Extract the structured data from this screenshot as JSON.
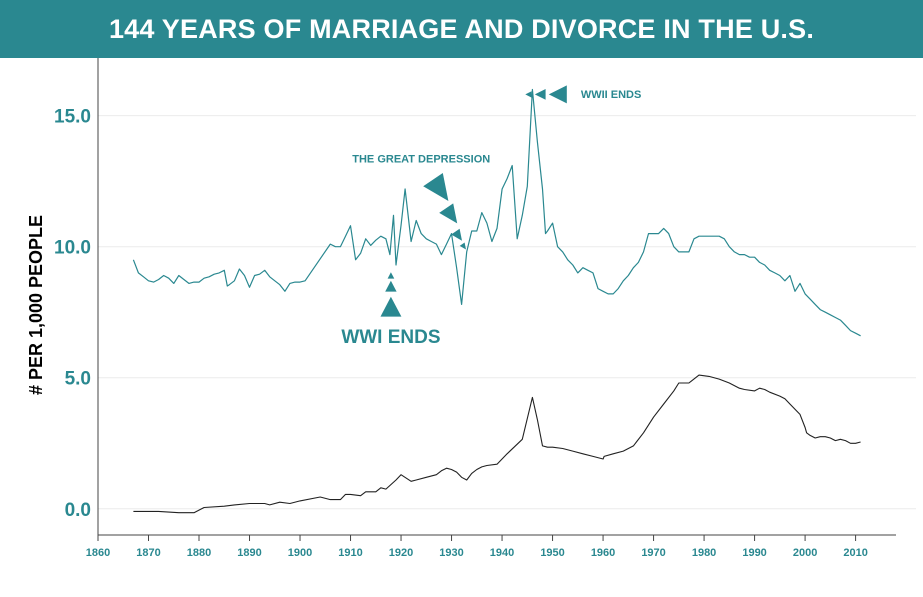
{
  "chart_data": {
    "type": "line",
    "title": "144 YEARS OF MARRIAGE AND DIVORCE IN THE U.S.",
    "ylabel": "# PER 1,000 PEOPLE",
    "xlabel": "",
    "xlim": [
      1860,
      2018
    ],
    "ylim": [
      -1.0,
      17.2
    ],
    "grid": "horizontal",
    "colors": {
      "marriage": "#2a8890",
      "divorce": "#222222",
      "text": "#2a8890",
      "axis": "#444444",
      "grid": "#ececec"
    },
    "x_ticks": [
      {
        "value": 1860,
        "label": "1860"
      },
      {
        "value": 1870,
        "label": "1870"
      },
      {
        "value": 1880,
        "label": "1880"
      },
      {
        "value": 1890,
        "label": "1890"
      },
      {
        "value": 1900,
        "label": "1900"
      },
      {
        "value": 1910,
        "label": "1910"
      },
      {
        "value": 1920,
        "label": "1920"
      },
      {
        "value": 1930,
        "label": "1930"
      },
      {
        "value": 1940,
        "label": "1940"
      },
      {
        "value": 1950,
        "label": "1950"
      },
      {
        "value": 1960,
        "label": "1960"
      },
      {
        "value": 1970,
        "label": "1970"
      },
      {
        "value": 1980,
        "label": "1980"
      },
      {
        "value": 1990,
        "label": "1990"
      },
      {
        "value": 2000,
        "label": "2000"
      },
      {
        "value": 2010,
        "label": "2010"
      }
    ],
    "y_ticks": [
      {
        "value": 0,
        "label": "0.0"
      },
      {
        "value": 5,
        "label": "5.0"
      },
      {
        "value": 10,
        "label": "10.0"
      },
      {
        "value": 15,
        "label": "15.0"
      }
    ],
    "series": [
      {
        "key": "marriage",
        "points": [
          [
            1867,
            9.5
          ],
          [
            1868,
            9.0
          ],
          [
            1869,
            8.85
          ],
          [
            1870,
            8.7
          ],
          [
            1871,
            8.65
          ],
          [
            1872,
            8.75
          ],
          [
            1873,
            8.9
          ],
          [
            1874,
            8.8
          ],
          [
            1875,
            8.6
          ],
          [
            1876,
            8.9
          ],
          [
            1877,
            8.75
          ],
          [
            1878,
            8.6
          ],
          [
            1879,
            8.65
          ],
          [
            1880,
            8.65
          ],
          [
            1881,
            8.8
          ],
          [
            1882,
            8.85
          ],
          [
            1883,
            8.95
          ],
          [
            1884,
            9.0
          ],
          [
            1885,
            9.1
          ],
          [
            1885.6,
            8.5
          ],
          [
            1886,
            8.55
          ],
          [
            1887,
            8.7
          ],
          [
            1888,
            9.15
          ],
          [
            1889,
            8.9
          ],
          [
            1890,
            8.45
          ],
          [
            1891,
            8.9
          ],
          [
            1892,
            8.95
          ],
          [
            1893,
            9.1
          ],
          [
            1894,
            8.85
          ],
          [
            1895,
            8.7
          ],
          [
            1896,
            8.55
          ],
          [
            1897,
            8.3
          ],
          [
            1898,
            8.6
          ],
          [
            1899,
            8.65
          ],
          [
            1900,
            8.65
          ],
          [
            1901,
            8.7
          ],
          [
            1906,
            10.1
          ],
          [
            1907,
            10.0
          ],
          [
            1908,
            10.0
          ],
          [
            1909,
            10.4
          ],
          [
            1910,
            10.8
          ],
          [
            1911,
            9.5
          ],
          [
            1912,
            9.75
          ],
          [
            1913,
            10.3
          ],
          [
            1914,
            10.05
          ],
          [
            1915,
            10.25
          ],
          [
            1916,
            10.4
          ],
          [
            1917,
            10.3
          ],
          [
            1917.8,
            9.7
          ],
          [
            1918.5,
            11.2
          ],
          [
            1919,
            9.3
          ],
          [
            1920,
            10.8
          ],
          [
            1920.8,
            12.2
          ],
          [
            1922,
            10.2
          ],
          [
            1923,
            11.0
          ],
          [
            1924,
            10.5
          ],
          [
            1925,
            10.3
          ],
          [
            1926,
            10.2
          ],
          [
            1927,
            10.1
          ],
          [
            1928,
            9.7
          ],
          [
            1929,
            10.1
          ],
          [
            1930,
            10.5
          ],
          [
            1931,
            9.2
          ],
          [
            1932,
            7.8
          ],
          [
            1933,
            9.8
          ],
          [
            1934,
            10.6
          ],
          [
            1935,
            10.6
          ],
          [
            1936,
            11.3
          ],
          [
            1937,
            10.9
          ],
          [
            1938,
            10.2
          ],
          [
            1939,
            10.7
          ],
          [
            1940,
            12.2
          ],
          [
            1941,
            12.6
          ],
          [
            1942,
            13.1
          ],
          [
            1943,
            10.3
          ],
          [
            1944,
            11.2
          ],
          [
            1945,
            12.3
          ],
          [
            1946,
            16.0
          ],
          [
            1947,
            14.0
          ],
          [
            1948,
            12.2
          ],
          [
            1948.6,
            10.5
          ],
          [
            1949,
            10.6
          ],
          [
            1950,
            10.9
          ],
          [
            1951,
            10.0
          ],
          [
            1952,
            9.8
          ],
          [
            1953,
            9.5
          ],
          [
            1954,
            9.3
          ],
          [
            1955,
            9.0
          ],
          [
            1956,
            9.2
          ],
          [
            1957,
            9.1
          ],
          [
            1958,
            9.0
          ],
          [
            1959,
            8.4
          ],
          [
            1960,
            8.3
          ],
          [
            1961,
            8.2
          ],
          [
            1962,
            8.2
          ],
          [
            1963,
            8.4
          ],
          [
            1964,
            8.7
          ],
          [
            1965,
            8.9
          ],
          [
            1966,
            9.2
          ],
          [
            1967,
            9.4
          ],
          [
            1968,
            9.8
          ],
          [
            1969,
            10.5
          ],
          [
            1970,
            10.5
          ],
          [
            1971,
            10.5
          ],
          [
            1972,
            10.7
          ],
          [
            1973,
            10.5
          ],
          [
            1974,
            10.0
          ],
          [
            1975,
            9.8
          ],
          [
            1976,
            9.8
          ],
          [
            1977,
            9.8
          ],
          [
            1978,
            10.3
          ],
          [
            1979,
            10.4
          ],
          [
            1980,
            10.4
          ],
          [
            1981,
            10.4
          ],
          [
            1982,
            10.4
          ],
          [
            1983,
            10.4
          ],
          [
            1984,
            10.3
          ],
          [
            1985,
            10.0
          ],
          [
            1986,
            9.8
          ],
          [
            1987,
            9.7
          ],
          [
            1988,
            9.7
          ],
          [
            1989,
            9.6
          ],
          [
            1990,
            9.6
          ],
          [
            1991,
            9.4
          ],
          [
            1992,
            9.3
          ],
          [
            1993,
            9.1
          ],
          [
            1994,
            9.0
          ],
          [
            1995,
            8.9
          ],
          [
            1996,
            8.7
          ],
          [
            1997,
            8.9
          ],
          [
            1998,
            8.3
          ],
          [
            1999,
            8.6
          ],
          [
            2000,
            8.2
          ],
          [
            2001,
            8.0
          ],
          [
            2002,
            7.8
          ],
          [
            2003,
            7.6
          ],
          [
            2004,
            7.5
          ],
          [
            2005,
            7.4
          ],
          [
            2006,
            7.3
          ],
          [
            2007,
            7.2
          ],
          [
            2008,
            7.0
          ],
          [
            2009,
            6.8
          ],
          [
            2010,
            6.7
          ],
          [
            2011,
            6.6
          ]
        ]
      },
      {
        "key": "divorce",
        "points": [
          [
            1867,
            -0.1
          ],
          [
            1872,
            -0.1
          ],
          [
            1876,
            -0.15
          ],
          [
            1879,
            -0.15
          ],
          [
            1880,
            -0.05
          ],
          [
            1881,
            0.05
          ],
          [
            1885,
            0.1
          ],
          [
            1887,
            0.15
          ],
          [
            1890,
            0.2
          ],
          [
            1893,
            0.2
          ],
          [
            1894,
            0.15
          ],
          [
            1896,
            0.25
          ],
          [
            1898,
            0.2
          ],
          [
            1900,
            0.3
          ],
          [
            1904,
            0.45
          ],
          [
            1906,
            0.35
          ],
          [
            1908,
            0.35
          ],
          [
            1909,
            0.55
          ],
          [
            1910,
            0.55
          ],
          [
            1912,
            0.5
          ],
          [
            1913,
            0.65
          ],
          [
            1915,
            0.65
          ],
          [
            1916,
            0.8
          ],
          [
            1917,
            0.75
          ],
          [
            1919,
            1.1
          ],
          [
            1920,
            1.3
          ],
          [
            1922,
            1.05
          ],
          [
            1923,
            1.1
          ],
          [
            1925,
            1.2
          ],
          [
            1927,
            1.3
          ],
          [
            1928,
            1.45
          ],
          [
            1929,
            1.55
          ],
          [
            1930,
            1.5
          ],
          [
            1931,
            1.4
          ],
          [
            1932,
            1.2
          ],
          [
            1933,
            1.1
          ],
          [
            1934,
            1.35
          ],
          [
            1935,
            1.5
          ],
          [
            1936,
            1.6
          ],
          [
            1937,
            1.65
          ],
          [
            1939,
            1.7
          ],
          [
            1941,
            2.1
          ],
          [
            1944,
            2.65
          ],
          [
            1946,
            4.25
          ],
          [
            1947,
            3.4
          ],
          [
            1948,
            2.4
          ],
          [
            1949,
            2.35
          ],
          [
            1950,
            2.35
          ],
          [
            1952,
            2.3
          ],
          [
            1954,
            2.2
          ],
          [
            1956,
            2.1
          ],
          [
            1958,
            2.0
          ],
          [
            1960,
            1.9
          ],
          [
            1960.2,
            2.0
          ],
          [
            1962,
            2.1
          ],
          [
            1964,
            2.2
          ],
          [
            1966,
            2.4
          ],
          [
            1968,
            2.9
          ],
          [
            1970,
            3.5
          ],
          [
            1972,
            4.0
          ],
          [
            1974,
            4.5
          ],
          [
            1975,
            4.8
          ],
          [
            1977,
            4.8
          ],
          [
            1979,
            5.1
          ],
          [
            1981,
            5.05
          ],
          [
            1983,
            4.95
          ],
          [
            1985,
            4.8
          ],
          [
            1987,
            4.6
          ],
          [
            1988,
            4.55
          ],
          [
            1990,
            4.5
          ],
          [
            1991,
            4.6
          ],
          [
            1992,
            4.55
          ],
          [
            1993,
            4.45
          ],
          [
            1995,
            4.3
          ],
          [
            1996,
            4.2
          ],
          [
            1997,
            4.0
          ],
          [
            1998,
            3.8
          ],
          [
            1999,
            3.6
          ],
          [
            2000,
            3.1
          ],
          [
            2000.3,
            2.9
          ],
          [
            2001,
            2.8
          ],
          [
            2002,
            2.7
          ],
          [
            2003,
            2.75
          ],
          [
            2004,
            2.75
          ],
          [
            2005,
            2.7
          ],
          [
            2006,
            2.6
          ],
          [
            2007,
            2.65
          ],
          [
            2008,
            2.6
          ],
          [
            2009,
            2.5
          ],
          [
            2010,
            2.5
          ],
          [
            2011,
            2.55
          ]
        ]
      }
    ],
    "annotations": [
      {
        "text": "WWII ENDS",
        "size": "small",
        "at": [
          1955.6,
          15.83
        ],
        "arrows": "left"
      },
      {
        "text": "THE GREAT DEPRESSION",
        "size": "small",
        "at": [
          1924.0,
          13.37
        ],
        "arrows": "diagonal"
      },
      {
        "text": "WWI ENDS",
        "size": "big",
        "at": [
          1918.0,
          6.6
        ],
        "arrows": "up"
      }
    ]
  }
}
